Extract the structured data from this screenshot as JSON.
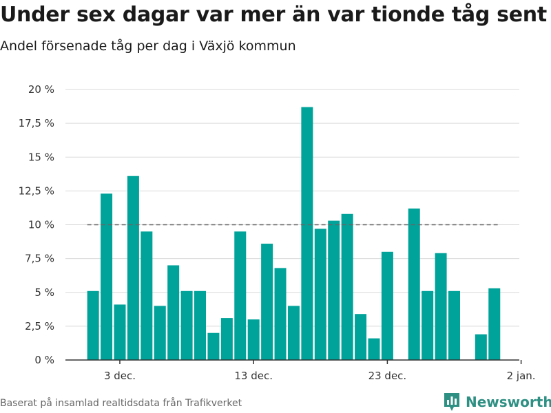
{
  "title": "Under sex dagar var mer än var tionde tåg sent",
  "subtitle": "Andel försenade tåg per dag i Växjö kommun",
  "source": "Baserat på insamlad realtidsdata från Trafikverket",
  "brand": "Newsworthy",
  "colors": {
    "bar": "#00a39a",
    "grid": "#d9d9d9",
    "axis": "#333333",
    "reference_line": "#666666",
    "brand": "#2e8f83"
  },
  "icons": {
    "brand_logo": "newsworthy-chart-logo-icon"
  },
  "chart_data": {
    "type": "bar",
    "title": "Under sex dagar var mer än var tionde tåg sent",
    "subtitle": "Andel försenade tåg per dag i Växjö kommun",
    "xlabel": "",
    "ylabel": "",
    "x": [
      "2023-12-01",
      "2023-12-02",
      "2023-12-03",
      "2023-12-04",
      "2023-12-05",
      "2023-12-06",
      "2023-12-07",
      "2023-12-08",
      "2023-12-09",
      "2023-12-10",
      "2023-12-11",
      "2023-12-12",
      "2023-12-13",
      "2023-12-14",
      "2023-12-15",
      "2023-12-16",
      "2023-12-17",
      "2023-12-18",
      "2023-12-19",
      "2023-12-20",
      "2023-12-21",
      "2023-12-22",
      "2023-12-23",
      "2023-12-24",
      "2023-12-25",
      "2023-12-26",
      "2023-12-27",
      "2023-12-28",
      "2023-12-29",
      "2023-12-30",
      "2023-12-31"
    ],
    "values": [
      5.1,
      12.3,
      4.1,
      13.6,
      9.5,
      4.0,
      7.0,
      5.1,
      5.1,
      2.0,
      3.1,
      9.5,
      3.0,
      8.6,
      6.8,
      4.0,
      18.7,
      9.7,
      10.3,
      10.8,
      3.4,
      1.6,
      8.0,
      0,
      11.2,
      5.1,
      7.9,
      5.1,
      0,
      1.9,
      5.3
    ],
    "ylim": [
      0,
      20
    ],
    "yticks": [
      0,
      2.5,
      5,
      7.5,
      10,
      12.5,
      15,
      17.5,
      20
    ],
    "ytick_labels": [
      "0 %",
      "2,5 %",
      "5 %",
      "7,5 %",
      "10 %",
      "12,5 %",
      "15 %",
      "17,5 %",
      "20 %"
    ],
    "xticks": [
      {
        "x": "2023-12-03",
        "label": "3 dec."
      },
      {
        "x": "2023-12-13",
        "label": "13 dec."
      },
      {
        "x": "2023-12-23",
        "label": "23 dec."
      },
      {
        "x": "2024-01-02",
        "label": "2 jan."
      }
    ],
    "reference_line": {
      "y": 10,
      "style": "dashed"
    },
    "grid": true,
    "legend": "none"
  }
}
